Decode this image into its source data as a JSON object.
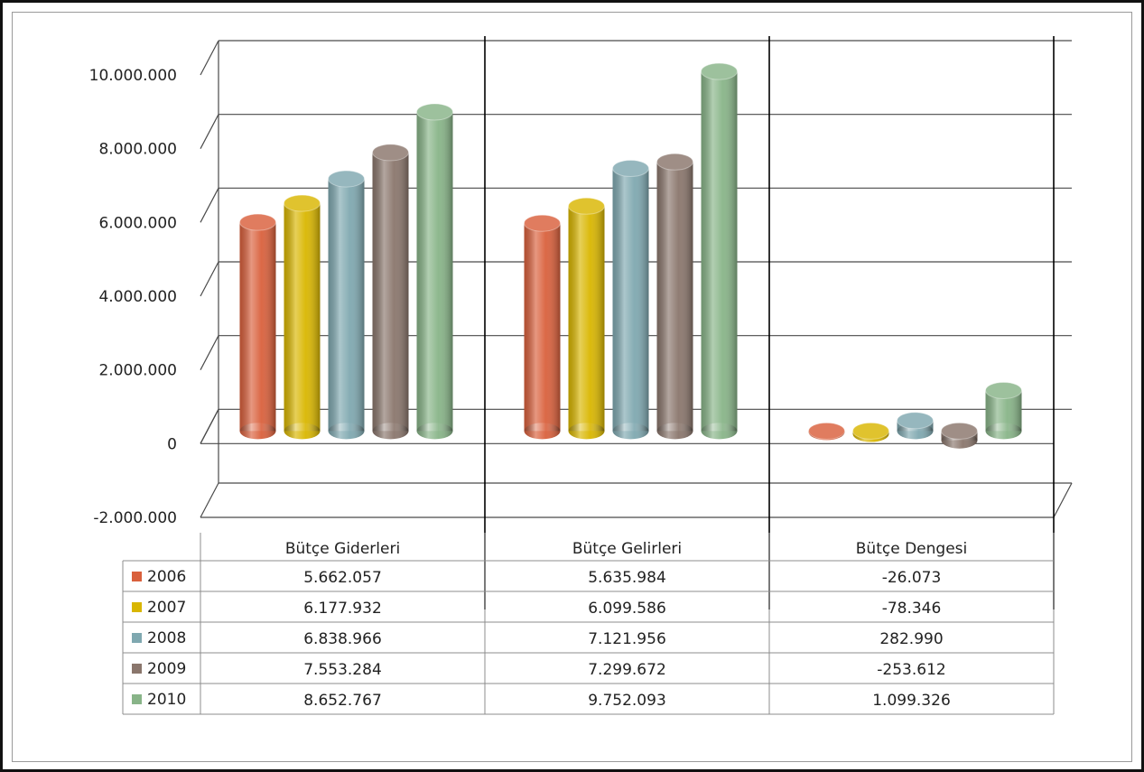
{
  "chart_data": {
    "type": "bar",
    "categories": [
      "Bütçe Giderleri",
      "Bütçe Gelirleri",
      "Bütçe Dengesi"
    ],
    "series": [
      {
        "name": "2006",
        "color": "#d9603c",
        "values": [
          5662057,
          5635984,
          -26073
        ],
        "labels": [
          "5.662.057",
          "5.635.984",
          "-26.073"
        ]
      },
      {
        "name": "2007",
        "color": "#d9b600",
        "values": [
          6177932,
          6099586,
          -78346
        ],
        "labels": [
          "6.177.932",
          "6.099.586",
          "-78.346"
        ]
      },
      {
        "name": "2008",
        "color": "#7fa8b0",
        "values": [
          6838966,
          7121956,
          282990
        ],
        "labels": [
          "6.838.966",
          "7.121.956",
          "282.990"
        ]
      },
      {
        "name": "2009",
        "color": "#8a766c",
        "values": [
          7553284,
          7299672,
          -253612
        ],
        "labels": [
          "7.553.284",
          "7.299.672",
          "-253.612"
        ]
      },
      {
        "name": "2010",
        "color": "#88b488",
        "values": [
          8652767,
          9752093,
          1099326
        ],
        "labels": [
          "8.652.767",
          "9.752.093",
          "1.099.326"
        ]
      }
    ],
    "ylim": [
      -2000000,
      10000000
    ],
    "yticks": [
      -2000000,
      0,
      2000000,
      4000000,
      6000000,
      8000000,
      10000000
    ],
    "ytick_labels": [
      "-2.000.000",
      "0",
      "2.000.000",
      "4.000.000",
      "6.000.000",
      "8.000.000",
      "10.000.000"
    ],
    "grid": true,
    "legend": "data-table",
    "title": "",
    "xlabel": "",
    "ylabel": ""
  }
}
